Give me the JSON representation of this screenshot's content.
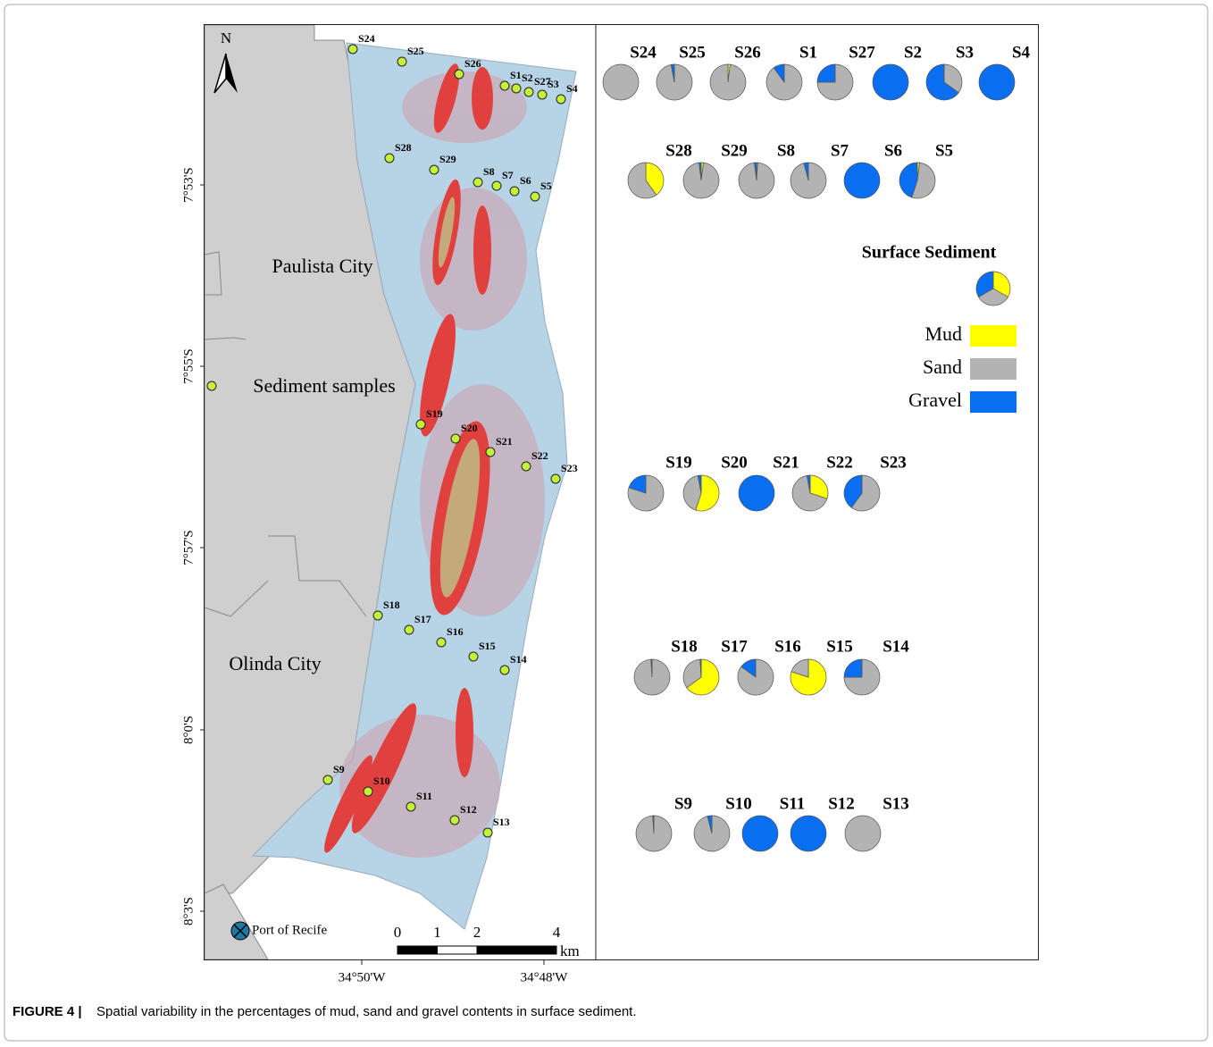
{
  "map": {
    "north": "N",
    "places": [
      "Paulista City",
      "Sediment samples",
      "Olinda City",
      "Port of Recife"
    ],
    "lat_ticks": [
      "7°53'S",
      "7°55'S",
      "7°57'S",
      "8°0'S",
      "8°3'S"
    ],
    "lon_ticks": [
      "34°50'W",
      "34°48'W"
    ],
    "scale": [
      0,
      1,
      2,
      4
    ],
    "scale_unit": "km",
    "samples": [
      "S24",
      "S25",
      "S26",
      "S1",
      "S2",
      "S27",
      "S3",
      "S4",
      "S28",
      "S29",
      "S8",
      "S7",
      "S6",
      "S5",
      "S19",
      "S20",
      "S21",
      "S22",
      "S23",
      "S18",
      "S17",
      "S16",
      "S15",
      "S14",
      "S9",
      "S10",
      "S11",
      "S12",
      "S13"
    ]
  },
  "legend": {
    "title": "Surface Sediment",
    "classes": [
      {
        "name": "Mud",
        "color": "#ffff00"
      },
      {
        "name": "Sand",
        "color": "#b3b3b3"
      },
      {
        "name": "Gravel",
        "color": "#0a6ef0"
      }
    ]
  },
  "pies": [
    [
      {
        "label": "S24",
        "mud": 0,
        "sand": 100,
        "gravel": 0
      },
      {
        "label": "S25",
        "mud": 0,
        "sand": 97,
        "gravel": 3
      },
      {
        "label": "S26",
        "mud": 2,
        "sand": 98,
        "gravel": 0
      },
      {
        "label": "S1",
        "mud": 0,
        "sand": 90,
        "gravel": 10
      },
      {
        "label": "S27",
        "mud": 0,
        "sand": 75,
        "gravel": 25
      },
      {
        "label": "S2",
        "mud": 0,
        "sand": 0,
        "gravel": 100
      },
      {
        "label": "S3",
        "mud": 0,
        "sand": 35,
        "gravel": 65
      },
      {
        "label": "S4",
        "mud": 0,
        "sand": 0,
        "gravel": 100
      }
    ],
    [
      {
        "label": "S28",
        "mud": 40,
        "sand": 60,
        "gravel": 0
      },
      {
        "label": "S29",
        "mud": 2,
        "sand": 96,
        "gravel": 2
      },
      {
        "label": "S8",
        "mud": 1,
        "sand": 97,
        "gravel": 2
      },
      {
        "label": "S7",
        "mud": 0,
        "sand": 96,
        "gravel": 4
      },
      {
        "label": "S6",
        "mud": 0,
        "sand": 0,
        "gravel": 100
      },
      {
        "label": "S5",
        "mud": 2,
        "sand": 53,
        "gravel": 45
      }
    ],
    [
      {
        "label": "S19",
        "mud": 0,
        "sand": 80,
        "gravel": 20
      },
      {
        "label": "S20",
        "mud": 55,
        "sand": 42,
        "gravel": 3
      },
      {
        "label": "S21",
        "mud": 0,
        "sand": 0,
        "gravel": 100
      },
      {
        "label": "S22",
        "mud": 30,
        "sand": 67,
        "gravel": 3
      },
      {
        "label": "S23",
        "mud": 0,
        "sand": 60,
        "gravel": 40
      }
    ],
    [
      {
        "label": "S18",
        "mud": 0,
        "sand": 99,
        "gravel": 1
      },
      {
        "label": "S17",
        "mud": 65,
        "sand": 34,
        "gravel": 1
      },
      {
        "label": "S16",
        "mud": 0,
        "sand": 85,
        "gravel": 15
      },
      {
        "label": "S15",
        "mud": 80,
        "sand": 20,
        "gravel": 0
      },
      {
        "label": "S14",
        "mud": 0,
        "sand": 75,
        "gravel": 25
      }
    ],
    [
      {
        "label": "S9",
        "mud": 0,
        "sand": 99,
        "gravel": 1
      },
      {
        "label": "S10",
        "mud": 0,
        "sand": 96,
        "gravel": 4
      },
      {
        "label": "S11",
        "mud": 0,
        "sand": 0,
        "gravel": 100
      },
      {
        "label": "S12",
        "mud": 0,
        "sand": 0,
        "gravel": 100
      },
      {
        "label": "S13",
        "mud": 0,
        "sand": 100,
        "gravel": 0
      }
    ]
  ],
  "caption": {
    "label": "FIGURE 4 |",
    "text": "Spatial variability in the percentages of mud, sand and gravel contents in surface sediment."
  }
}
